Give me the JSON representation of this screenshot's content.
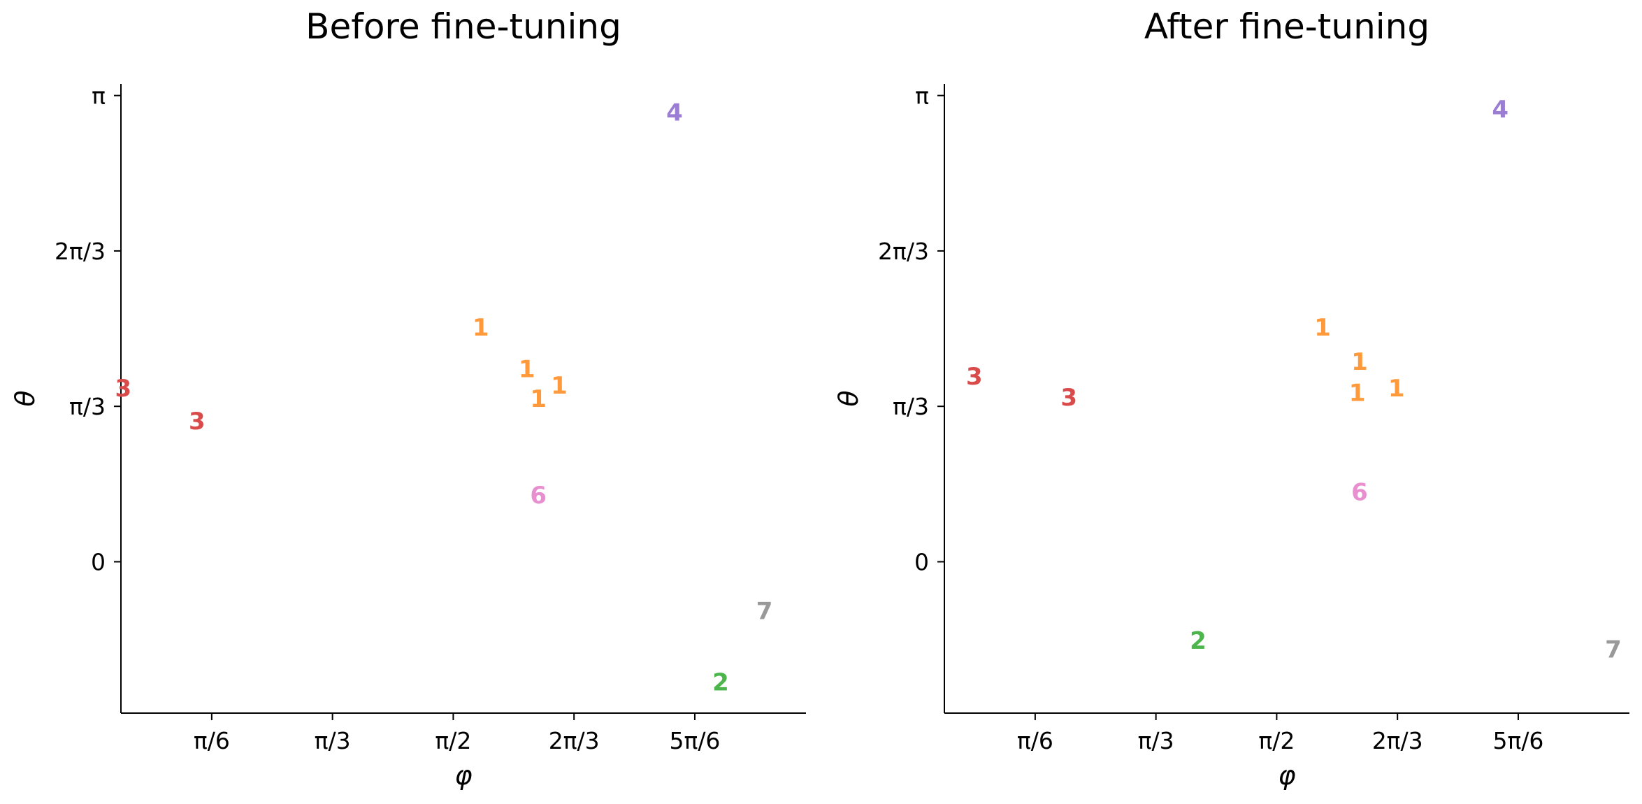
{
  "chart_data": [
    {
      "type": "scatter",
      "title": "Before fine-tuning",
      "xlabel": "φ",
      "ylabel": "θ",
      "x_ticks": [
        "π/6",
        "π/3",
        "π/2",
        "2π/3",
        "5π/6"
      ],
      "x_tick_values": [
        0.5236,
        1.0472,
        1.5708,
        2.0944,
        2.618
      ],
      "y_ticks": [
        "0",
        "π/3",
        "2π/3",
        "π"
      ],
      "y_tick_values": [
        0,
        1.0472,
        2.0944,
        3.1416
      ],
      "xlim": [
        0.13,
        3.1
      ],
      "ylim": [
        -1.02,
        3.22
      ],
      "grid": false,
      "points": [
        {
          "label": "3",
          "x": 0.14,
          "y": 1.17,
          "color": "#d94b4b"
        },
        {
          "label": "3",
          "x": 0.46,
          "y": 0.95,
          "color": "#d94b4b"
        },
        {
          "label": "1",
          "x": 1.69,
          "y": 1.58,
          "color": "#ff9a3c"
        },
        {
          "label": "1",
          "x": 1.89,
          "y": 1.3,
          "color": "#ff9a3c"
        },
        {
          "label": "1",
          "x": 1.94,
          "y": 1.1,
          "color": "#ff9a3c"
        },
        {
          "label": "1",
          "x": 2.03,
          "y": 1.19,
          "color": "#ff9a3c"
        },
        {
          "label": "6",
          "x": 1.94,
          "y": 0.45,
          "color": "#e88fcf"
        },
        {
          "label": "4",
          "x": 2.53,
          "y": 3.03,
          "color": "#9b7dd4"
        },
        {
          "label": "7",
          "x": 2.92,
          "y": -0.33,
          "color": "#999999"
        },
        {
          "label": "2",
          "x": 2.73,
          "y": -0.81,
          "color": "#4cb54c"
        }
      ]
    },
    {
      "type": "scatter",
      "title": "After fine-tuning",
      "xlabel": "φ",
      "ylabel": "θ",
      "x_ticks": [
        "π/6",
        "π/3",
        "π/2",
        "2π/3",
        "5π/6"
      ],
      "x_tick_values": [
        0.5236,
        1.0472,
        1.5708,
        2.0944,
        2.618
      ],
      "y_ticks": [
        "0",
        "π/3",
        "2π/3",
        "π"
      ],
      "y_tick_values": [
        0,
        1.0472,
        2.0944,
        3.1416
      ],
      "xlim": [
        0.13,
        3.1
      ],
      "ylim": [
        -1.02,
        3.22
      ],
      "grid": false,
      "points": [
        {
          "label": "3",
          "x": 0.26,
          "y": 1.25,
          "color": "#d94b4b"
        },
        {
          "label": "3",
          "x": 0.67,
          "y": 1.11,
          "color": "#d94b4b"
        },
        {
          "label": "1",
          "x": 1.77,
          "y": 1.58,
          "color": "#ff9a3c"
        },
        {
          "label": "1",
          "x": 1.93,
          "y": 1.35,
          "color": "#ff9a3c"
        },
        {
          "label": "1",
          "x": 1.92,
          "y": 1.14,
          "color": "#ff9a3c"
        },
        {
          "label": "1",
          "x": 2.09,
          "y": 1.17,
          "color": "#ff9a3c"
        },
        {
          "label": "6",
          "x": 1.93,
          "y": 0.47,
          "color": "#e88fcf"
        },
        {
          "label": "4",
          "x": 2.54,
          "y": 3.05,
          "color": "#9b7dd4"
        },
        {
          "label": "2",
          "x": 1.23,
          "y": -0.53,
          "color": "#4cb54c"
        },
        {
          "label": "7",
          "x": 3.03,
          "y": -0.59,
          "color": "#999999"
        }
      ]
    }
  ]
}
